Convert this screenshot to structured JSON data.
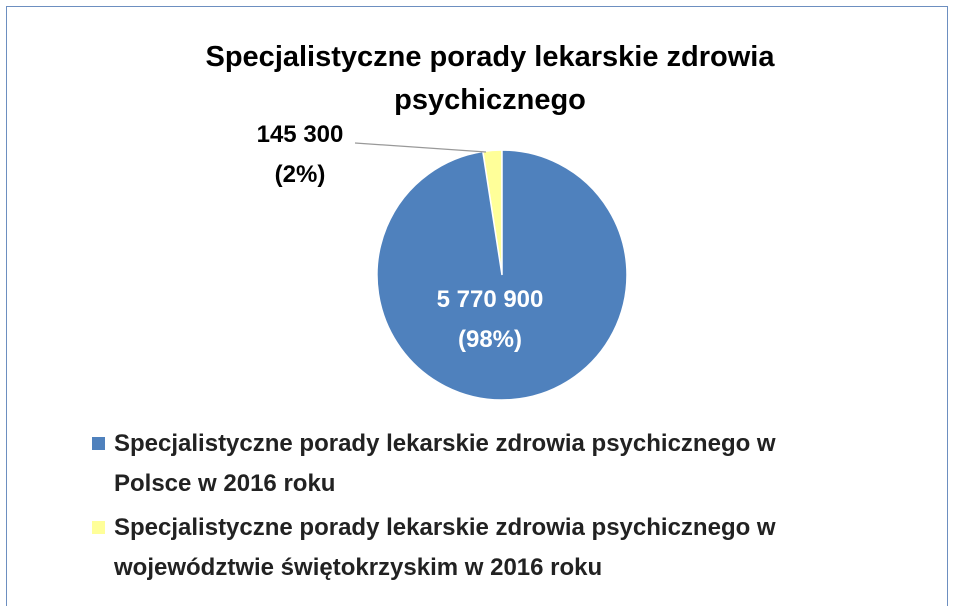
{
  "chart_data": {
    "type": "pie",
    "title": "Specjalistyczne porady lekarskie zdrowia psychicznego",
    "categories": [
      "Specjalistyczne porady lekarskie zdrowia psychicznego w Polsce w 2016 roku",
      "Specjalistyczne porady lekarskie zdrowia psychicznego w województwie świętokrzyskim w 2016 roku"
    ],
    "values": [
      5770900,
      145300
    ],
    "value_labels": [
      "5 770 900",
      "145 300"
    ],
    "percent_labels": [
      "(98%)",
      "(2%)"
    ],
    "colors": [
      "#4f81bd",
      "#ffff99"
    ],
    "legend": "bottom"
  }
}
